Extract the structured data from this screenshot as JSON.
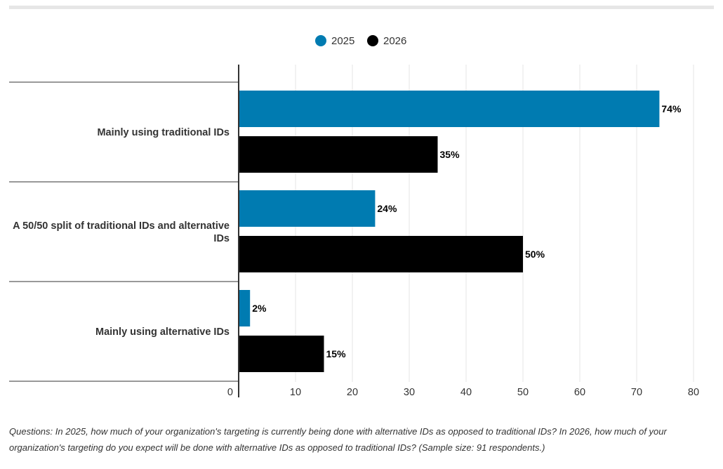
{
  "chart_data": {
    "type": "bar",
    "orientation": "horizontal",
    "categories": [
      "Mainly using traditional IDs",
      "A 50/50 split of traditional IDs and alternative IDs",
      "Mainly using alternative IDs"
    ],
    "category_lines": [
      [
        "Mainly using traditional IDs"
      ],
      [
        "A 50/50 split of traditional IDs and alternative",
        "IDs"
      ],
      [
        "Mainly using alternative IDs"
      ]
    ],
    "series": [
      {
        "name": "2025",
        "values": [
          74,
          24,
          2
        ],
        "color": "#007bb1"
      },
      {
        "name": "2026",
        "values": [
          35,
          50,
          15
        ],
        "color": "#000000"
      }
    ],
    "value_suffix": "%",
    "xlim": [
      0,
      80
    ],
    "xticks": [
      0,
      10,
      20,
      30,
      40,
      50,
      60,
      70,
      80
    ],
    "grid": true,
    "legend_position": "top-center"
  },
  "footnote": "Questions: In 2025, how much of your organization's targeting is currently being done with alternative IDs as opposed to traditional IDs?  In 2026, how much of your organization's targeting do you expect will be done with alternative IDs as opposed to traditional IDs? (Sample size: 91 respondents.)"
}
